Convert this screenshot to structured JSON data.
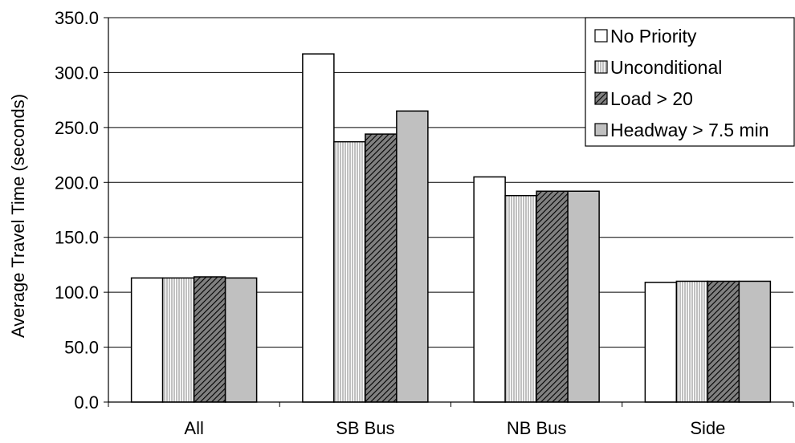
{
  "chart_data": {
    "type": "bar",
    "title": "",
    "xlabel": "",
    "ylabel": "Average Travel Time (seconds)",
    "ylim": [
      0,
      350
    ],
    "yticks": [
      "0.0",
      "50.0",
      "100.0",
      "150.0",
      "200.0",
      "250.0",
      "300.0",
      "350.0"
    ],
    "categories": [
      "All",
      "SB Bus",
      "NB Bus",
      "Side"
    ],
    "series": [
      {
        "name": "No Priority",
        "pattern": "solid-white",
        "values": [
          113,
          317,
          205,
          109
        ]
      },
      {
        "name": "Unconditional",
        "pattern": "vertical-lines",
        "values": [
          113,
          237,
          188,
          110
        ]
      },
      {
        "name": "Load > 20",
        "pattern": "diagonal-hatch",
        "values": [
          114,
          244,
          192,
          110
        ]
      },
      {
        "name": "Headway > 7.5 min",
        "pattern": "solid-gray",
        "values": [
          113,
          265,
          192,
          110
        ]
      }
    ],
    "grid": true,
    "legend_position": "top-right",
    "colors": {
      "bar_outline": "#000000",
      "gray_fill": "#c0c0c0",
      "grid": "#000000"
    }
  }
}
